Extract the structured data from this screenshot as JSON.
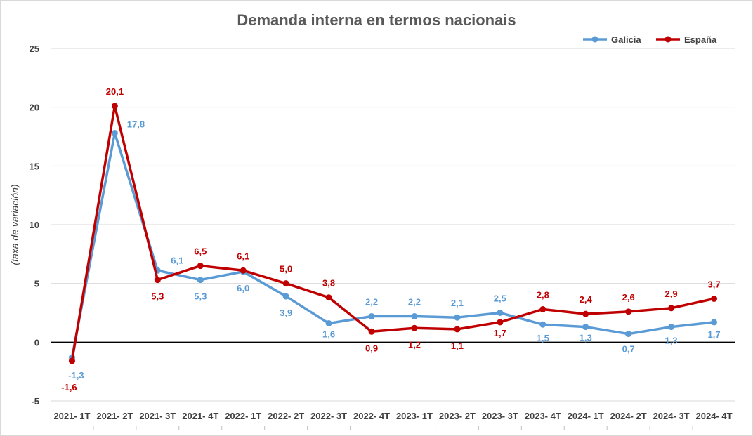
{
  "chart_data": {
    "type": "line",
    "title": "Demanda interna en termos nacionais",
    "ylabel": "(taxa de variación)",
    "xlabel": "",
    "ylim": [
      -5,
      25
    ],
    "yticks": [
      -5,
      0,
      5,
      10,
      15,
      20,
      25
    ],
    "grid": true,
    "legend": "top-right",
    "categories": [
      "2021- 1T",
      "2021- 2T",
      "2021- 3T",
      "2021- 4T",
      "2022- 1T",
      "2022- 2T",
      "2022- 3T",
      "2022- 4T",
      "2023- 1T",
      "2023- 2T",
      "2023- 3T",
      "2023- 4T",
      "2024- 1T",
      "2024- 2T",
      "2024- 3T",
      "2024- 4T"
    ],
    "series": [
      {
        "name": "Galicia",
        "color": "#5b9bd5",
        "values": [
          -1.3,
          17.8,
          6.1,
          5.3,
          6.0,
          3.9,
          1.6,
          2.2,
          2.2,
          2.1,
          2.5,
          1.5,
          1.3,
          0.7,
          1.3,
          1.7
        ],
        "labels": [
          "-1,3",
          "17,8",
          "6,1",
          "5,3",
          "6,0",
          "3,9",
          "1,6",
          "2,2",
          "2,2",
          "2,1",
          "2,5",
          "1,5",
          "1,3",
          "0,7",
          "1,3",
          "1,7"
        ]
      },
      {
        "name": "España",
        "color": "#c00000",
        "values": [
          -1.6,
          20.1,
          5.3,
          6.5,
          6.1,
          5.0,
          3.8,
          0.9,
          1.2,
          1.1,
          1.7,
          2.8,
          2.4,
          2.6,
          2.9,
          3.7
        ],
        "labels": [
          "-1,6",
          "20,1",
          "5,3",
          "6,5",
          "6,1",
          "5,0",
          "3,8",
          "0,9",
          "1,2",
          "1,1",
          "1,7",
          "2,8",
          "2,4",
          "2,6",
          "2,9",
          "3,7"
        ]
      }
    ]
  }
}
